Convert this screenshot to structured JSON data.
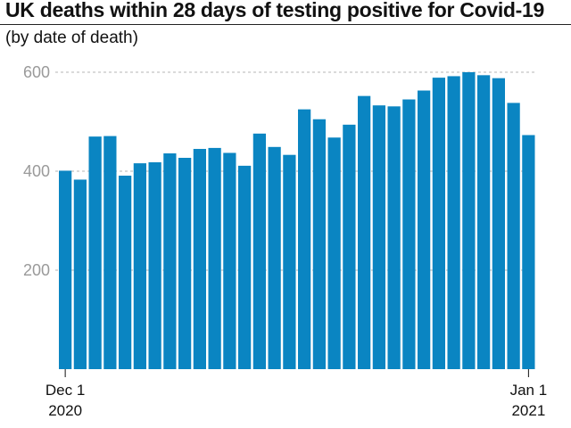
{
  "chart_data": {
    "type": "bar",
    "title": "UK deaths within 28 days of testing positive for Covid-19",
    "subtitle": "(by date of death)",
    "xlabel": "",
    "ylabel": "",
    "ylim": [
      0,
      600
    ],
    "yticks": [
      200,
      400,
      600
    ],
    "grid": true,
    "bar_color": "#0a85c2",
    "x_tick_labels": [
      {
        "line1": "Dec 1",
        "line2": "2020",
        "index": 0
      },
      {
        "line1": "Jan 1",
        "line2": "2021",
        "index": 31
      }
    ],
    "categories": [
      "2020-12-01",
      "2020-12-02",
      "2020-12-03",
      "2020-12-04",
      "2020-12-05",
      "2020-12-06",
      "2020-12-07",
      "2020-12-08",
      "2020-12-09",
      "2020-12-10",
      "2020-12-11",
      "2020-12-12",
      "2020-12-13",
      "2020-12-14",
      "2020-12-15",
      "2020-12-16",
      "2020-12-17",
      "2020-12-18",
      "2020-12-19",
      "2020-12-20",
      "2020-12-21",
      "2020-12-22",
      "2020-12-23",
      "2020-12-24",
      "2020-12-25",
      "2020-12-26",
      "2020-12-27",
      "2020-12-28",
      "2020-12-29",
      "2020-12-30",
      "2020-12-31",
      "2021-01-01"
    ],
    "values": [
      401,
      383,
      470,
      471,
      391,
      416,
      418,
      436,
      427,
      445,
      447,
      437,
      411,
      476,
      449,
      433,
      525,
      505,
      468,
      494,
      552,
      533,
      531,
      545,
      563,
      589,
      592,
      600,
      594,
      588,
      538,
      473
    ]
  }
}
